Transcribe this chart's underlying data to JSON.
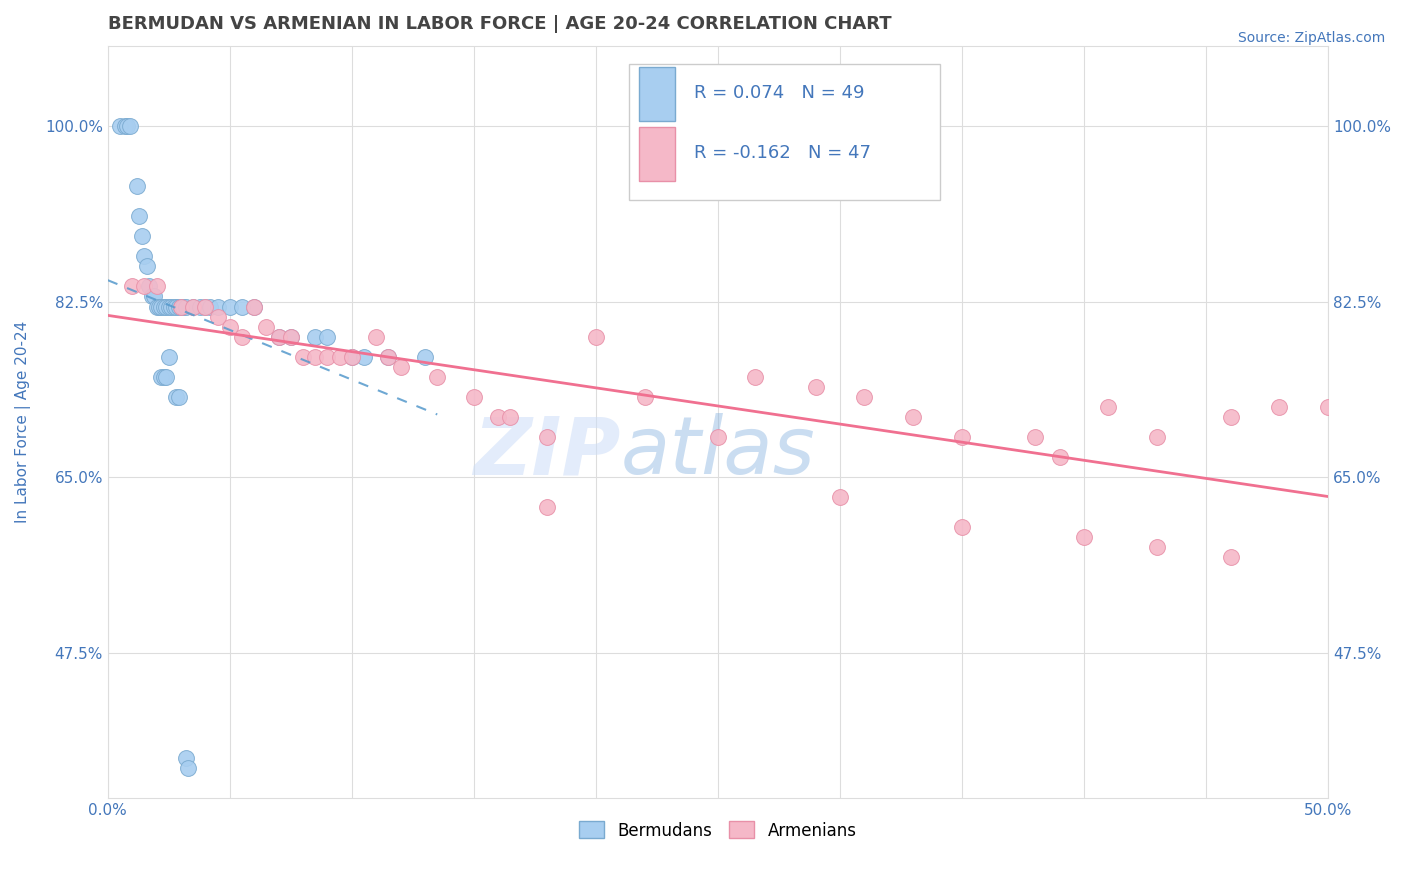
{
  "title": "BERMUDAN VS ARMENIAN IN LABOR FORCE | AGE 20-24 CORRELATION CHART",
  "source": "Source: ZipAtlas.com",
  "ylabel": "In Labor Force | Age 20-24",
  "xlim": [
    0.0,
    0.5
  ],
  "ylim": [
    0.33,
    1.08
  ],
  "xticks": [
    0.0,
    0.05,
    0.1,
    0.15,
    0.2,
    0.25,
    0.3,
    0.35,
    0.4,
    0.45,
    0.5
  ],
  "xticklabels": [
    "0.0%",
    "",
    "",
    "",
    "",
    "",
    "",
    "",
    "",
    "",
    "50.0%"
  ],
  "yticks": [
    0.475,
    0.65,
    0.825,
    1.0
  ],
  "yticklabels": [
    "47.5%",
    "65.0%",
    "82.5%",
    "100.0%"
  ],
  "bermudan_x": [
    0.005,
    0.007,
    0.008,
    0.009,
    0.012,
    0.013,
    0.014,
    0.015,
    0.016,
    0.017,
    0.018,
    0.019,
    0.02,
    0.021,
    0.022,
    0.023,
    0.024,
    0.025,
    0.026,
    0.027,
    0.028,
    0.029,
    0.03,
    0.031,
    0.032,
    0.035,
    0.038,
    0.04,
    0.042,
    0.045,
    0.05,
    0.055,
    0.06,
    0.07,
    0.075,
    0.085,
    0.09,
    0.1,
    0.105,
    0.115,
    0.13,
    0.025,
    0.022,
    0.023,
    0.024,
    0.028,
    0.029,
    0.032,
    0.033
  ],
  "bermudan_y": [
    1.0,
    1.0,
    1.0,
    1.0,
    0.94,
    0.91,
    0.89,
    0.87,
    0.86,
    0.84,
    0.83,
    0.83,
    0.82,
    0.82,
    0.82,
    0.82,
    0.82,
    0.82,
    0.82,
    0.82,
    0.82,
    0.82,
    0.82,
    0.82,
    0.82,
    0.82,
    0.82,
    0.82,
    0.82,
    0.82,
    0.82,
    0.82,
    0.82,
    0.79,
    0.79,
    0.79,
    0.79,
    0.77,
    0.77,
    0.77,
    0.77,
    0.77,
    0.75,
    0.75,
    0.75,
    0.73,
    0.73,
    0.37,
    0.36
  ],
  "armenian_x": [
    0.01,
    0.015,
    0.02,
    0.03,
    0.035,
    0.04,
    0.045,
    0.05,
    0.055,
    0.06,
    0.065,
    0.07,
    0.075,
    0.08,
    0.085,
    0.09,
    0.095,
    0.1,
    0.11,
    0.115,
    0.12,
    0.135,
    0.15,
    0.16,
    0.165,
    0.18,
    0.2,
    0.22,
    0.25,
    0.265,
    0.29,
    0.31,
    0.33,
    0.35,
    0.38,
    0.39,
    0.41,
    0.43,
    0.46,
    0.48,
    0.5,
    0.18,
    0.3,
    0.35,
    0.4,
    0.43,
    0.46
  ],
  "armenian_y": [
    0.84,
    0.84,
    0.84,
    0.82,
    0.82,
    0.82,
    0.81,
    0.8,
    0.79,
    0.82,
    0.8,
    0.79,
    0.79,
    0.77,
    0.77,
    0.77,
    0.77,
    0.77,
    0.79,
    0.77,
    0.76,
    0.75,
    0.73,
    0.71,
    0.71,
    0.69,
    0.79,
    0.73,
    0.69,
    0.75,
    0.74,
    0.73,
    0.71,
    0.69,
    0.69,
    0.67,
    0.72,
    0.69,
    0.71,
    0.72,
    0.72,
    0.62,
    0.63,
    0.6,
    0.59,
    0.58,
    0.57
  ],
  "bermudan_color": "#a8cef0",
  "armenian_color": "#f5b8c8",
  "bermudan_edge_color": "#7aaad0",
  "armenian_edge_color": "#e890a8",
  "bermudan_trend_color": "#5599cc",
  "armenian_trend_color": "#f07090",
  "r_bermudan": 0.074,
  "n_bermudan": 49,
  "r_armenian": -0.162,
  "n_armenian": 47,
  "legend_color": "#4477bb",
  "watermark_color": "#c8ddf5",
  "watermark_alpha": 0.5,
  "background_color": "#ffffff",
  "grid_color": "#dddddd",
  "tick_color": "#4477bb",
  "title_color": "#444444",
  "title_fontsize": 13,
  "source_fontsize": 10,
  "axis_label_fontsize": 11,
  "tick_fontsize": 11,
  "legend_fontsize": 13
}
